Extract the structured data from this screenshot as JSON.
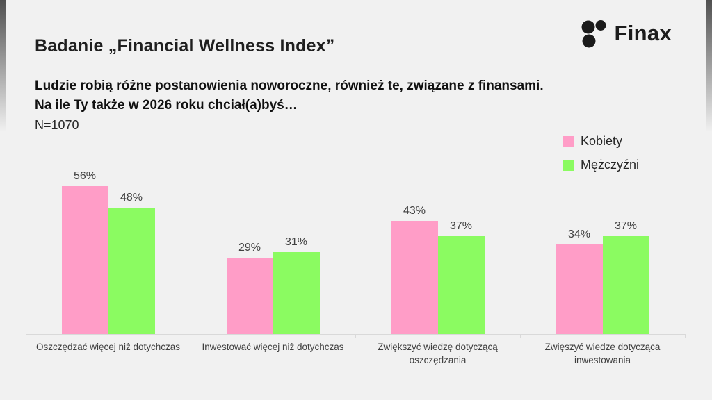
{
  "page": {
    "background": "#f1f1f1"
  },
  "brand": {
    "name": "Finax",
    "logo_icon": "finax-dots-icon",
    "color": "#1c1c1c"
  },
  "title": "Badanie „Financial Wellness Index”",
  "subtitle": {
    "line1": "Ludzie robią różne postanowienia noworoczne, również te, związane z finansami.",
    "line2": "Na ile Ty także w 2026 roku chciał(a)byś…",
    "sample": "N=1070"
  },
  "legend": {
    "position": "top-right",
    "items": [
      {
        "label": "Kobiety",
        "color": "#ff9dc7"
      },
      {
        "label": "Mężczyźni",
        "color": "#8bfb61"
      }
    ]
  },
  "chart_data": {
    "type": "bar",
    "grouped": true,
    "categories": [
      "Oszczędzać więcej niż dotychczas",
      "Inwestować więcej niż dotychczas",
      "Zwiększyć wiedzę dotyczącą oszczędzania",
      "Zwięszyć wiedze dotycząca inwestowania"
    ],
    "series": [
      {
        "name": "Kobiety",
        "color": "#ff9dc7",
        "values": [
          56,
          29,
          43,
          34
        ]
      },
      {
        "name": "Mężczyźni",
        "color": "#8bfb61",
        "values": [
          48,
          31,
          37,
          37
        ]
      }
    ],
    "value_suffix": "%",
    "data_labels": true,
    "ylim": [
      0,
      65
    ],
    "grid": false,
    "axis_color": "#d9d9d9",
    "title": "Badanie „Financial Wellness Index”",
    "xlabel": "",
    "ylabel": ""
  }
}
